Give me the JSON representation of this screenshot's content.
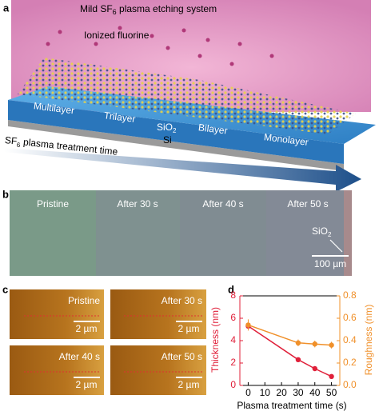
{
  "figure": {
    "panel_labels": [
      "a",
      "b",
      "c",
      "d"
    ],
    "a": {
      "system": [
        "Mild SF",
        "6",
        " plasma etching system"
      ],
      "ion": "Ionized fluorine",
      "layers": [
        "Multilayer",
        "Trilayer",
        "Bilayer",
        "Monolayer"
      ],
      "substrate": [
        "SiO",
        "2"
      ],
      "si": "Si",
      "time": [
        "SF",
        "6",
        " plasma treatment time"
      ]
    },
    "b": {
      "labels": [
        "Pristine",
        "After 30 s",
        "After 40 s",
        "After 50 s"
      ],
      "sio2": [
        "SiO",
        "2"
      ],
      "scale": "100 µm"
    },
    "c": {
      "labels": [
        "Pristine",
        "After 30 s",
        "After 40 s",
        "After 50 s"
      ],
      "scale": [
        "2 µm",
        "2 µm",
        "2 µm",
        "2 µm"
      ]
    }
  },
  "chart_data": {
    "type": "line",
    "x": [
      0,
      30,
      40,
      50
    ],
    "xlim": [
      -5,
      55
    ],
    "xticks": [
      0,
      10,
      20,
      30,
      40,
      50
    ],
    "ylim": [
      0,
      8
    ],
    "yticks": [
      0,
      2,
      4,
      6,
      8
    ],
    "y2lim": [
      0,
      0.8
    ],
    "y2ticks": [
      {
        "value": 0,
        "label": "0.0"
      },
      0.2,
      0.4,
      0.6,
      0.8
    ],
    "xlabel": "Plasma treatment time (s)",
    "ylabel": "Thickness (nm)",
    "y2label": "Roughness (nm)",
    "series": [
      {
        "name": "Thickness",
        "color": "#e0203a",
        "values": [
          5.3,
          2.3,
          1.5,
          0.8
        ]
      },
      {
        "name": "Roughness",
        "color": "#f0902a",
        "axis": "y2",
        "values": [
          0.54,
          0.38,
          0.37,
          0.36
        ],
        "errors": [
          0.05,
          0.03,
          0.03,
          0.03
        ]
      }
    ]
  }
}
